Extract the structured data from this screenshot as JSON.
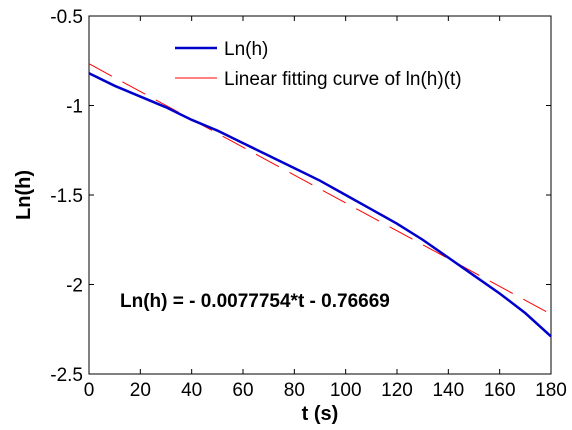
{
  "chart_data": {
    "type": "line",
    "title": "",
    "xlabel": "t (s)",
    "ylabel": "Ln(h)",
    "xlim": [
      0,
      180
    ],
    "ylim": [
      -2.5,
      -0.5
    ],
    "xticks": [
      0,
      20,
      40,
      60,
      80,
      100,
      120,
      140,
      160,
      180
    ],
    "xtick_labels": [
      "0",
      "20",
      "40",
      "60",
      "80",
      "100",
      "120",
      "140",
      "160",
      "180"
    ],
    "yticks": [
      -2.5,
      -2,
      -1.5,
      -1,
      -0.5
    ],
    "ytick_labels": [
      "-2.5",
      "-2",
      "-1.5",
      "-1",
      "-0.5"
    ],
    "grid": false,
    "legend_position": "top-right",
    "series": [
      {
        "name": "Ln(h)",
        "color": "#0000cc",
        "style": "solid",
        "x": [
          0,
          10,
          20,
          30,
          40,
          50,
          60,
          70,
          80,
          90,
          100,
          110,
          120,
          130,
          140,
          150,
          160,
          170,
          180
        ],
        "y": [
          -0.82,
          -0.89,
          -0.95,
          -1.01,
          -1.08,
          -1.14,
          -1.21,
          -1.28,
          -1.35,
          -1.42,
          -1.5,
          -1.58,
          -1.66,
          -1.75,
          -1.85,
          -1.95,
          -2.05,
          -2.16,
          -2.29
        ]
      },
      {
        "name": "Linear fitting curve of ln(h)(t)",
        "color": "#ff0000",
        "style": "dashed",
        "x": [
          0,
          180
        ],
        "y": [
          -0.76669,
          -2.16626
        ]
      }
    ],
    "annotations": [
      {
        "text": "Ln(h) = - 0.0077754*t - 0.76669",
        "x": 12,
        "y": -2.1
      }
    ]
  }
}
